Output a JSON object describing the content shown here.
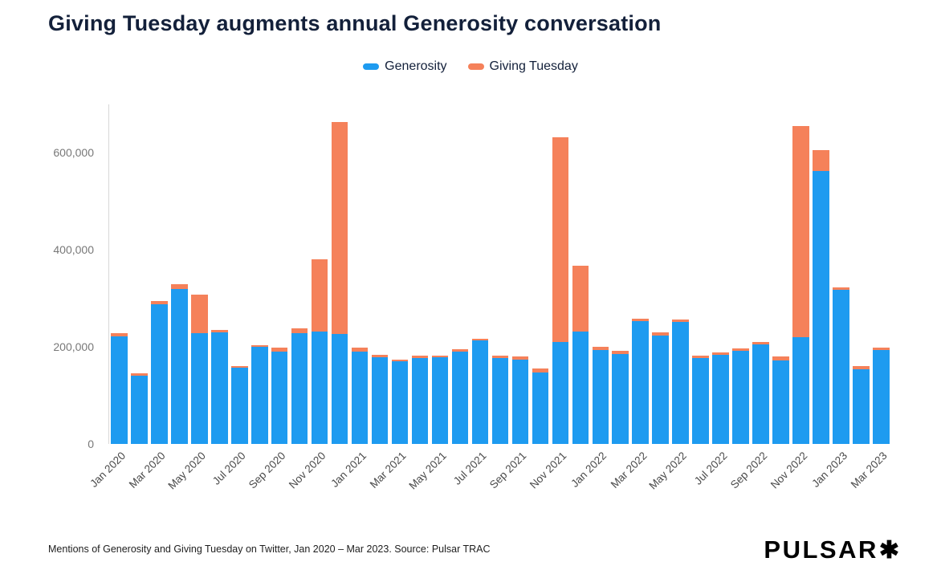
{
  "title": "Giving Tuesday augments annual Generosity conversation",
  "legend": [
    {
      "label": "Generosity",
      "color": "#1E9BF0"
    },
    {
      "label": "Giving Tuesday",
      "color": "#F5815A"
    }
  ],
  "footer": {
    "caption": "Mentions of Generosity and Giving Tuesday on Twitter, Jan 2020 – Mar 2023. Source: Pulsar TRAC",
    "brand": "PULSAR",
    "brand_star": "✱"
  },
  "chart_data": {
    "type": "bar",
    "stacked": true,
    "title": "Giving Tuesday augments annual Generosity conversation",
    "xlabel": "",
    "ylabel": "",
    "ylim": [
      0,
      700000
    ],
    "y_ticks": [
      0,
      200000,
      400000,
      600000
    ],
    "grid": false,
    "legend_position": "top-center",
    "categories": [
      "Jan 2020",
      "Feb 2020",
      "Mar 2020",
      "Apr 2020",
      "May 2020",
      "Jun 2020",
      "Jul 2020",
      "Aug 2020",
      "Sep 2020",
      "Oct 2020",
      "Nov 2020",
      "Dec 2020",
      "Jan 2021",
      "Feb 2021",
      "Mar 2021",
      "Apr 2021",
      "May 2021",
      "Jun 2021",
      "Jul 2021",
      "Aug 2021",
      "Sep 2021",
      "Oct 2021",
      "Nov 2021",
      "Dec 2021",
      "Jan 2022",
      "Feb 2022",
      "Mar 2022",
      "Apr 2022",
      "May 2022",
      "Jun 2022",
      "Jul 2022",
      "Aug 2022",
      "Sep 2022",
      "Oct 2022",
      "Nov 2022",
      "Dec 2022",
      "Jan 2023",
      "Feb 2023",
      "Mar 2023"
    ],
    "x_tick_labels": [
      "Jan 2020",
      "Mar 2020",
      "May 2020",
      "Jul 2020",
      "Sep 2020",
      "Nov 2020",
      "Jan 2021",
      "Mar 2021",
      "May 2021",
      "Jul 2021",
      "Sep 2021",
      "Nov 2021",
      "Jan 2022",
      "Mar 2022",
      "May 2022",
      "Jul 2022",
      "Sep 2022",
      "Nov 2022",
      "Jan 2023",
      "Mar 2023"
    ],
    "series": [
      {
        "name": "Generosity",
        "color": "#1E9BF0",
        "values": [
          222000,
          140000,
          288000,
          320000,
          228000,
          230000,
          157000,
          200000,
          191000,
          229000,
          232000,
          226000,
          190000,
          179000,
          170000,
          177000,
          178000,
          190000,
          214000,
          177000,
          174000,
          147000,
          210000,
          232000,
          194000,
          186000,
          254000,
          224000,
          252000,
          177000,
          183000,
          192000,
          205000,
          172000,
          220000,
          562000,
          318000,
          154000,
          193000
        ]
      },
      {
        "name": "Giving Tuesday",
        "color": "#F5815A",
        "values": [
          7000,
          5000,
          7000,
          10000,
          80000,
          5000,
          3000,
          4000,
          7000,
          9000,
          148000,
          438000,
          8000,
          5000,
          3000,
          5000,
          4000,
          5000,
          3000,
          5000,
          6000,
          8000,
          422000,
          136000,
          6000,
          6000,
          4000,
          6000,
          5000,
          5000,
          5000,
          5000,
          5000,
          8000,
          435000,
          43000,
          5000,
          6000,
          5000
        ]
      }
    ]
  }
}
